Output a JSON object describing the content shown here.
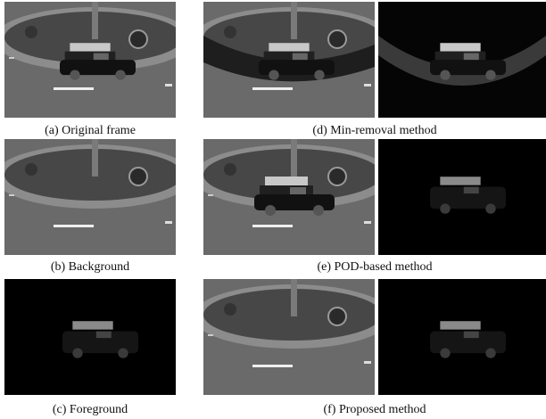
{
  "captions": [
    "(a) Original frame",
    "(b) Background",
    "(c) Foreground",
    "(d) Min-removal method",
    "(e) POD-based method",
    "(f) Proposed method"
  ]
}
